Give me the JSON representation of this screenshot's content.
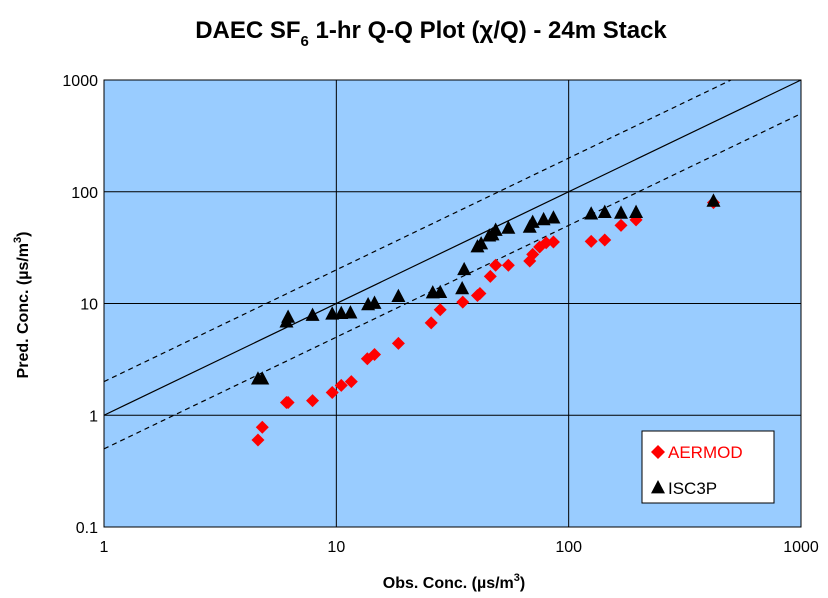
{
  "chart_data": {
    "type": "scatter",
    "title": {
      "pre": "DAEC SF",
      "sub": "6",
      "post": " 1-hr Q-Q Plot (χ/Q) - 24m Stack"
    },
    "xlabel": {
      "pre": "Obs. Conc. (µs/m",
      "sup": "3",
      "post": ")"
    },
    "ylabel": {
      "pre": "Pred. Conc. (µs/m",
      "sup": "3",
      "post": ")"
    },
    "x_scale": "log",
    "y_scale": "log",
    "xlim": [
      1,
      1000
    ],
    "ylim": [
      0.1,
      1000
    ],
    "x_ticks": [
      1,
      10,
      100,
      1000
    ],
    "x_tick_labels": [
      "1",
      "10",
      "100",
      "1000"
    ],
    "y_ticks": [
      0.1,
      1,
      10,
      100,
      1000
    ],
    "y_tick_labels": [
      "0.1",
      "1",
      "10",
      "100",
      "1000"
    ],
    "grid": true,
    "plot_background": "#99ccff",
    "reference_lines": [
      {
        "factor": 1,
        "style": "solid"
      },
      {
        "factor": 2,
        "style": "dashed"
      },
      {
        "factor": 0.5,
        "style": "dashed"
      }
    ],
    "legend": {
      "position": "bottom-right"
    },
    "series": [
      {
        "name": "AERMOD",
        "marker": "diamond",
        "color": "#ff0000",
        "points": [
          [
            4.6,
            0.6
          ],
          [
            4.8,
            0.78
          ],
          [
            6.1,
            1.3
          ],
          [
            6.2,
            1.3
          ],
          [
            7.9,
            1.35
          ],
          [
            9.6,
            1.6
          ],
          [
            10.5,
            1.85
          ],
          [
            11.6,
            2.0
          ],
          [
            13.6,
            3.2
          ],
          [
            14.6,
            3.5
          ],
          [
            18.5,
            4.4
          ],
          [
            25.6,
            6.7
          ],
          [
            28.0,
            8.8
          ],
          [
            35.0,
            10.3
          ],
          [
            40.5,
            11.8
          ],
          [
            41.5,
            12.3
          ],
          [
            46.0,
            17.5
          ],
          [
            48.5,
            22.0
          ],
          [
            55.0,
            22.0
          ],
          [
            68.0,
            24.0
          ],
          [
            70.0,
            27.5
          ],
          [
            75.0,
            32.0
          ],
          [
            80.0,
            35.0
          ],
          [
            86.0,
            35.5
          ],
          [
            125.0,
            36.0
          ],
          [
            143.0,
            37.0
          ],
          [
            168.0,
            50.0
          ],
          [
            195.0,
            56.0
          ],
          [
            420.0,
            80.0
          ]
        ]
      },
      {
        "name": "ISC3P",
        "marker": "triangle",
        "color": "#000000",
        "points": [
          [
            4.6,
            2.1
          ],
          [
            4.8,
            2.1
          ],
          [
            6.1,
            6.8
          ],
          [
            6.2,
            7.5
          ],
          [
            7.9,
            7.8
          ],
          [
            9.6,
            8.0
          ],
          [
            10.5,
            8.1
          ],
          [
            11.5,
            8.2
          ],
          [
            13.7,
            9.7
          ],
          [
            14.6,
            10.0
          ],
          [
            18.5,
            11.5
          ],
          [
            26.0,
            12.4
          ],
          [
            28.0,
            12.5
          ],
          [
            34.8,
            13.5
          ],
          [
            35.5,
            20.0
          ],
          [
            40.5,
            32.0
          ],
          [
            42.0,
            34.0
          ],
          [
            45.5,
            40.0
          ],
          [
            47.0,
            41.0
          ],
          [
            48.5,
            45.0
          ],
          [
            55.0,
            47.0
          ],
          [
            68.0,
            48.0
          ],
          [
            70.0,
            53.0
          ],
          [
            78.0,
            56.0
          ],
          [
            86.0,
            58.0
          ],
          [
            125.0,
            63.0
          ],
          [
            143.0,
            65.0
          ],
          [
            168.0,
            64.0
          ],
          [
            195.0,
            65.0
          ],
          [
            420.0,
            82.0
          ]
        ]
      }
    ]
  }
}
